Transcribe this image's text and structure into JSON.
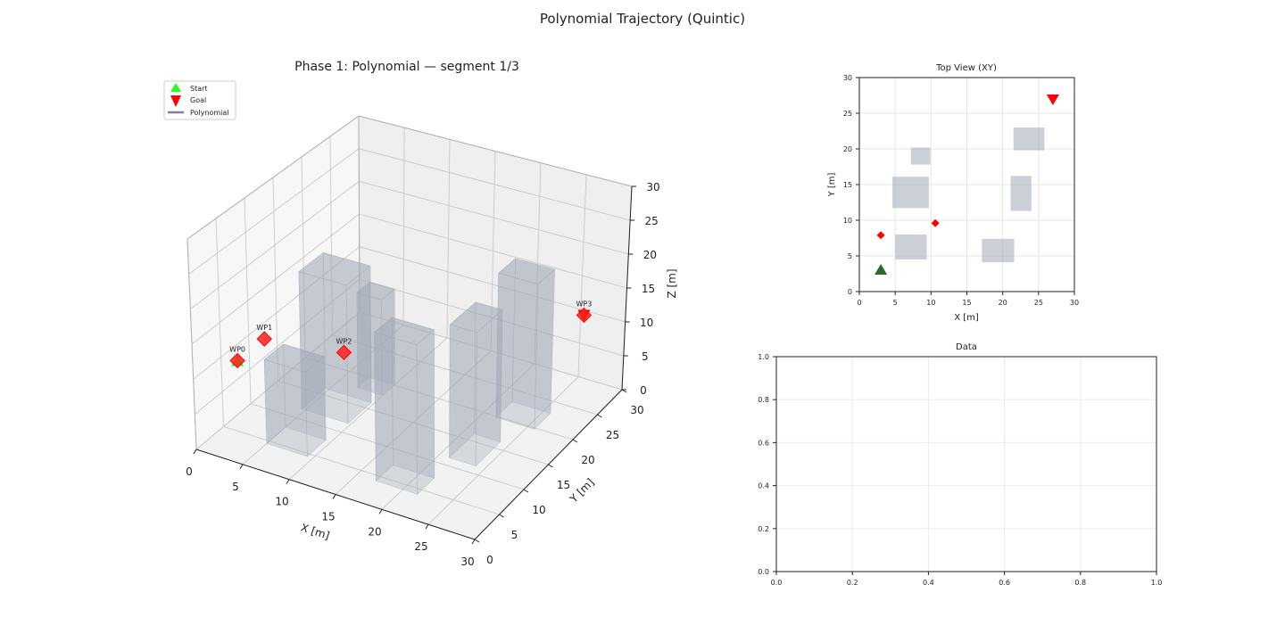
{
  "figure": {
    "suptitle": "Polynomial Trajectory (Quintic)"
  },
  "chart_data": [
    {
      "type": "scatter",
      "projection": "3d",
      "title": "Phase 1: Polynomial — segment 1/3",
      "xlabel": "X [m]",
      "ylabel": "Y [m]",
      "zlabel": "Z [m]",
      "xlim": [
        0,
        30
      ],
      "ylim": [
        0,
        30
      ],
      "zlim": [
        0,
        30
      ],
      "xticks": [
        0,
        5,
        10,
        15,
        20,
        25,
        30
      ],
      "yticks": [
        0,
        5,
        10,
        15,
        20,
        25,
        30
      ],
      "zticks": [
        0,
        5,
        10,
        15,
        20,
        25,
        30
      ],
      "grid": true,
      "legend": {
        "placement": "upper-left",
        "entries": [
          {
            "label": "Start",
            "marker": "triangle-up",
            "color": "#22ff22"
          },
          {
            "label": "Goal",
            "marker": "triangle-down",
            "color": "#ff0000"
          },
          {
            "label": "Polynomial",
            "marker": "line",
            "color": "#7f7f9f"
          }
        ]
      },
      "start": {
        "x": 3,
        "y": 3,
        "z": 12,
        "color": "#22ff22"
      },
      "goal": {
        "x": 27,
        "y": 27,
        "z": 12,
        "color": "#ff0000"
      },
      "waypoints": [
        {
          "label": "WP0",
          "x": 3,
          "y": 3,
          "z": 12
        },
        {
          "label": "WP1",
          "x": 3,
          "y": 7.9,
          "z": 12
        },
        {
          "label": "WP2",
          "x": 10.6,
          "y": 9.6,
          "z": 12
        },
        {
          "label": "WP3",
          "x": 27,
          "y": 27,
          "z": 12
        }
      ],
      "waypoint_color": "#ff2020",
      "obstacles": [
        {
          "x": [
            4.6,
            9.7
          ],
          "y": [
            11.7,
            16.1
          ],
          "z": [
            0,
            20
          ]
        },
        {
          "x": [
            7.2,
            9.9
          ],
          "y": [
            17.8,
            20.2
          ],
          "z": [
            0,
            14
          ]
        },
        {
          "x": [
            5.0,
            9.4
          ],
          "y": [
            4.5,
            8.0
          ],
          "z": [
            0,
            12
          ]
        },
        {
          "x": [
            17.1,
            21.6
          ],
          "y": [
            4.1,
            7.4
          ],
          "z": [
            0,
            21
          ]
        },
        {
          "x": [
            21.1,
            24.0
          ],
          "y": [
            11.3,
            16.2
          ],
          "z": [
            0,
            19
          ]
        },
        {
          "x": [
            21.5,
            25.8
          ],
          "y": [
            19.8,
            23.0
          ],
          "z": [
            0,
            21
          ]
        }
      ],
      "obstacle_color": "#a0aab8"
    },
    {
      "type": "scatter",
      "title": "Top View (XY)",
      "xlabel": "X [m]",
      "ylabel": "Y [m]",
      "xlim": [
        0,
        30
      ],
      "ylim": [
        0,
        30
      ],
      "xticks": [
        0,
        5,
        10,
        15,
        20,
        25,
        30
      ],
      "yticks": [
        0,
        5,
        10,
        15,
        20,
        25,
        30
      ],
      "grid": true,
      "start": {
        "x": 3,
        "y": 3,
        "color": "#2a6a2a"
      },
      "goal": {
        "x": 27,
        "y": 27,
        "color": "#ff0000"
      },
      "waypoints": [
        {
          "x": 3,
          "y": 7.9
        },
        {
          "x": 10.6,
          "y": 9.6
        }
      ]
    },
    {
      "type": "line",
      "title": "Data",
      "xlim": [
        0,
        1
      ],
      "ylim": [
        0,
        1
      ],
      "xticks": [
        "0.0",
        "0.2",
        "0.4",
        "0.6",
        "0.8",
        "1.0"
      ],
      "yticks": [
        "0.0",
        "0.2",
        "0.4",
        "0.6",
        "0.8",
        "1.0"
      ],
      "grid": true,
      "series": []
    }
  ]
}
